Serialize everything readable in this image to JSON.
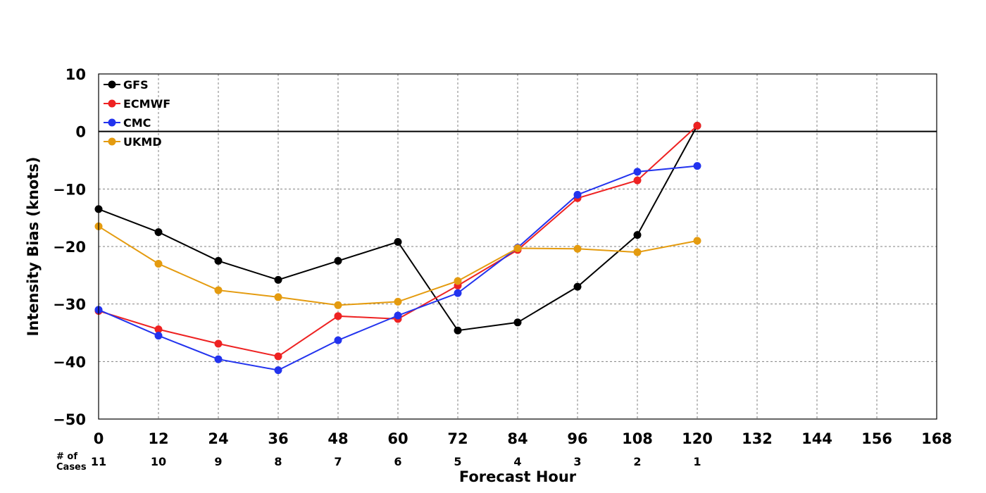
{
  "chart_data": {
    "type": "line",
    "title": "",
    "xlabel": "Forecast Hour",
    "ylabel": "Intensity Bias (knots)",
    "xlim": [
      0,
      168
    ],
    "ylim": [
      -50,
      10
    ],
    "x_ticks": [
      0,
      12,
      24,
      36,
      48,
      60,
      72,
      84,
      96,
      108,
      120,
      132,
      144,
      156,
      168
    ],
    "y_ticks": [
      10,
      0,
      -10,
      -20,
      -30,
      -40,
      -50
    ],
    "grid": true,
    "legend_position": "top-left",
    "zero_line": true,
    "x": [
      0,
      12,
      24,
      36,
      48,
      60,
      72,
      84,
      96,
      108,
      120
    ],
    "series": [
      {
        "name": "GFS",
        "color": "#000000",
        "values": [
          -13.5,
          -17.5,
          -22.5,
          -25.8,
          -22.5,
          -19.2,
          -34.6,
          -33.2,
          -27.0,
          -18.0,
          1.0
        ]
      },
      {
        "name": "ECMWF",
        "color": "#ee2222",
        "values": [
          -31.2,
          -34.4,
          -36.9,
          -39.1,
          -32.1,
          -32.6,
          -26.8,
          -20.6,
          -11.6,
          -8.5,
          1.0
        ]
      },
      {
        "name": "CMC",
        "color": "#2233ee",
        "values": [
          -31.0,
          -35.5,
          -39.6,
          -41.5,
          -36.3,
          -32.0,
          -28.1,
          -20.2,
          -11.0,
          -7.0,
          -6.0
        ]
      },
      {
        "name": "UKMD",
        "color": "#e49b0f",
        "values": [
          -16.5,
          -23.0,
          -27.6,
          -28.8,
          -30.2,
          -29.6,
          -26.0,
          -20.3,
          -20.4,
          -21.0,
          -19.0
        ]
      }
    ],
    "cases_label": "# of Cases",
    "cases_label_lines": [
      "# of",
      "Cases"
    ],
    "cases": [
      "11",
      "10",
      "9",
      "8",
      "7",
      "6",
      "5",
      "4",
      "3",
      "2",
      "1"
    ]
  }
}
